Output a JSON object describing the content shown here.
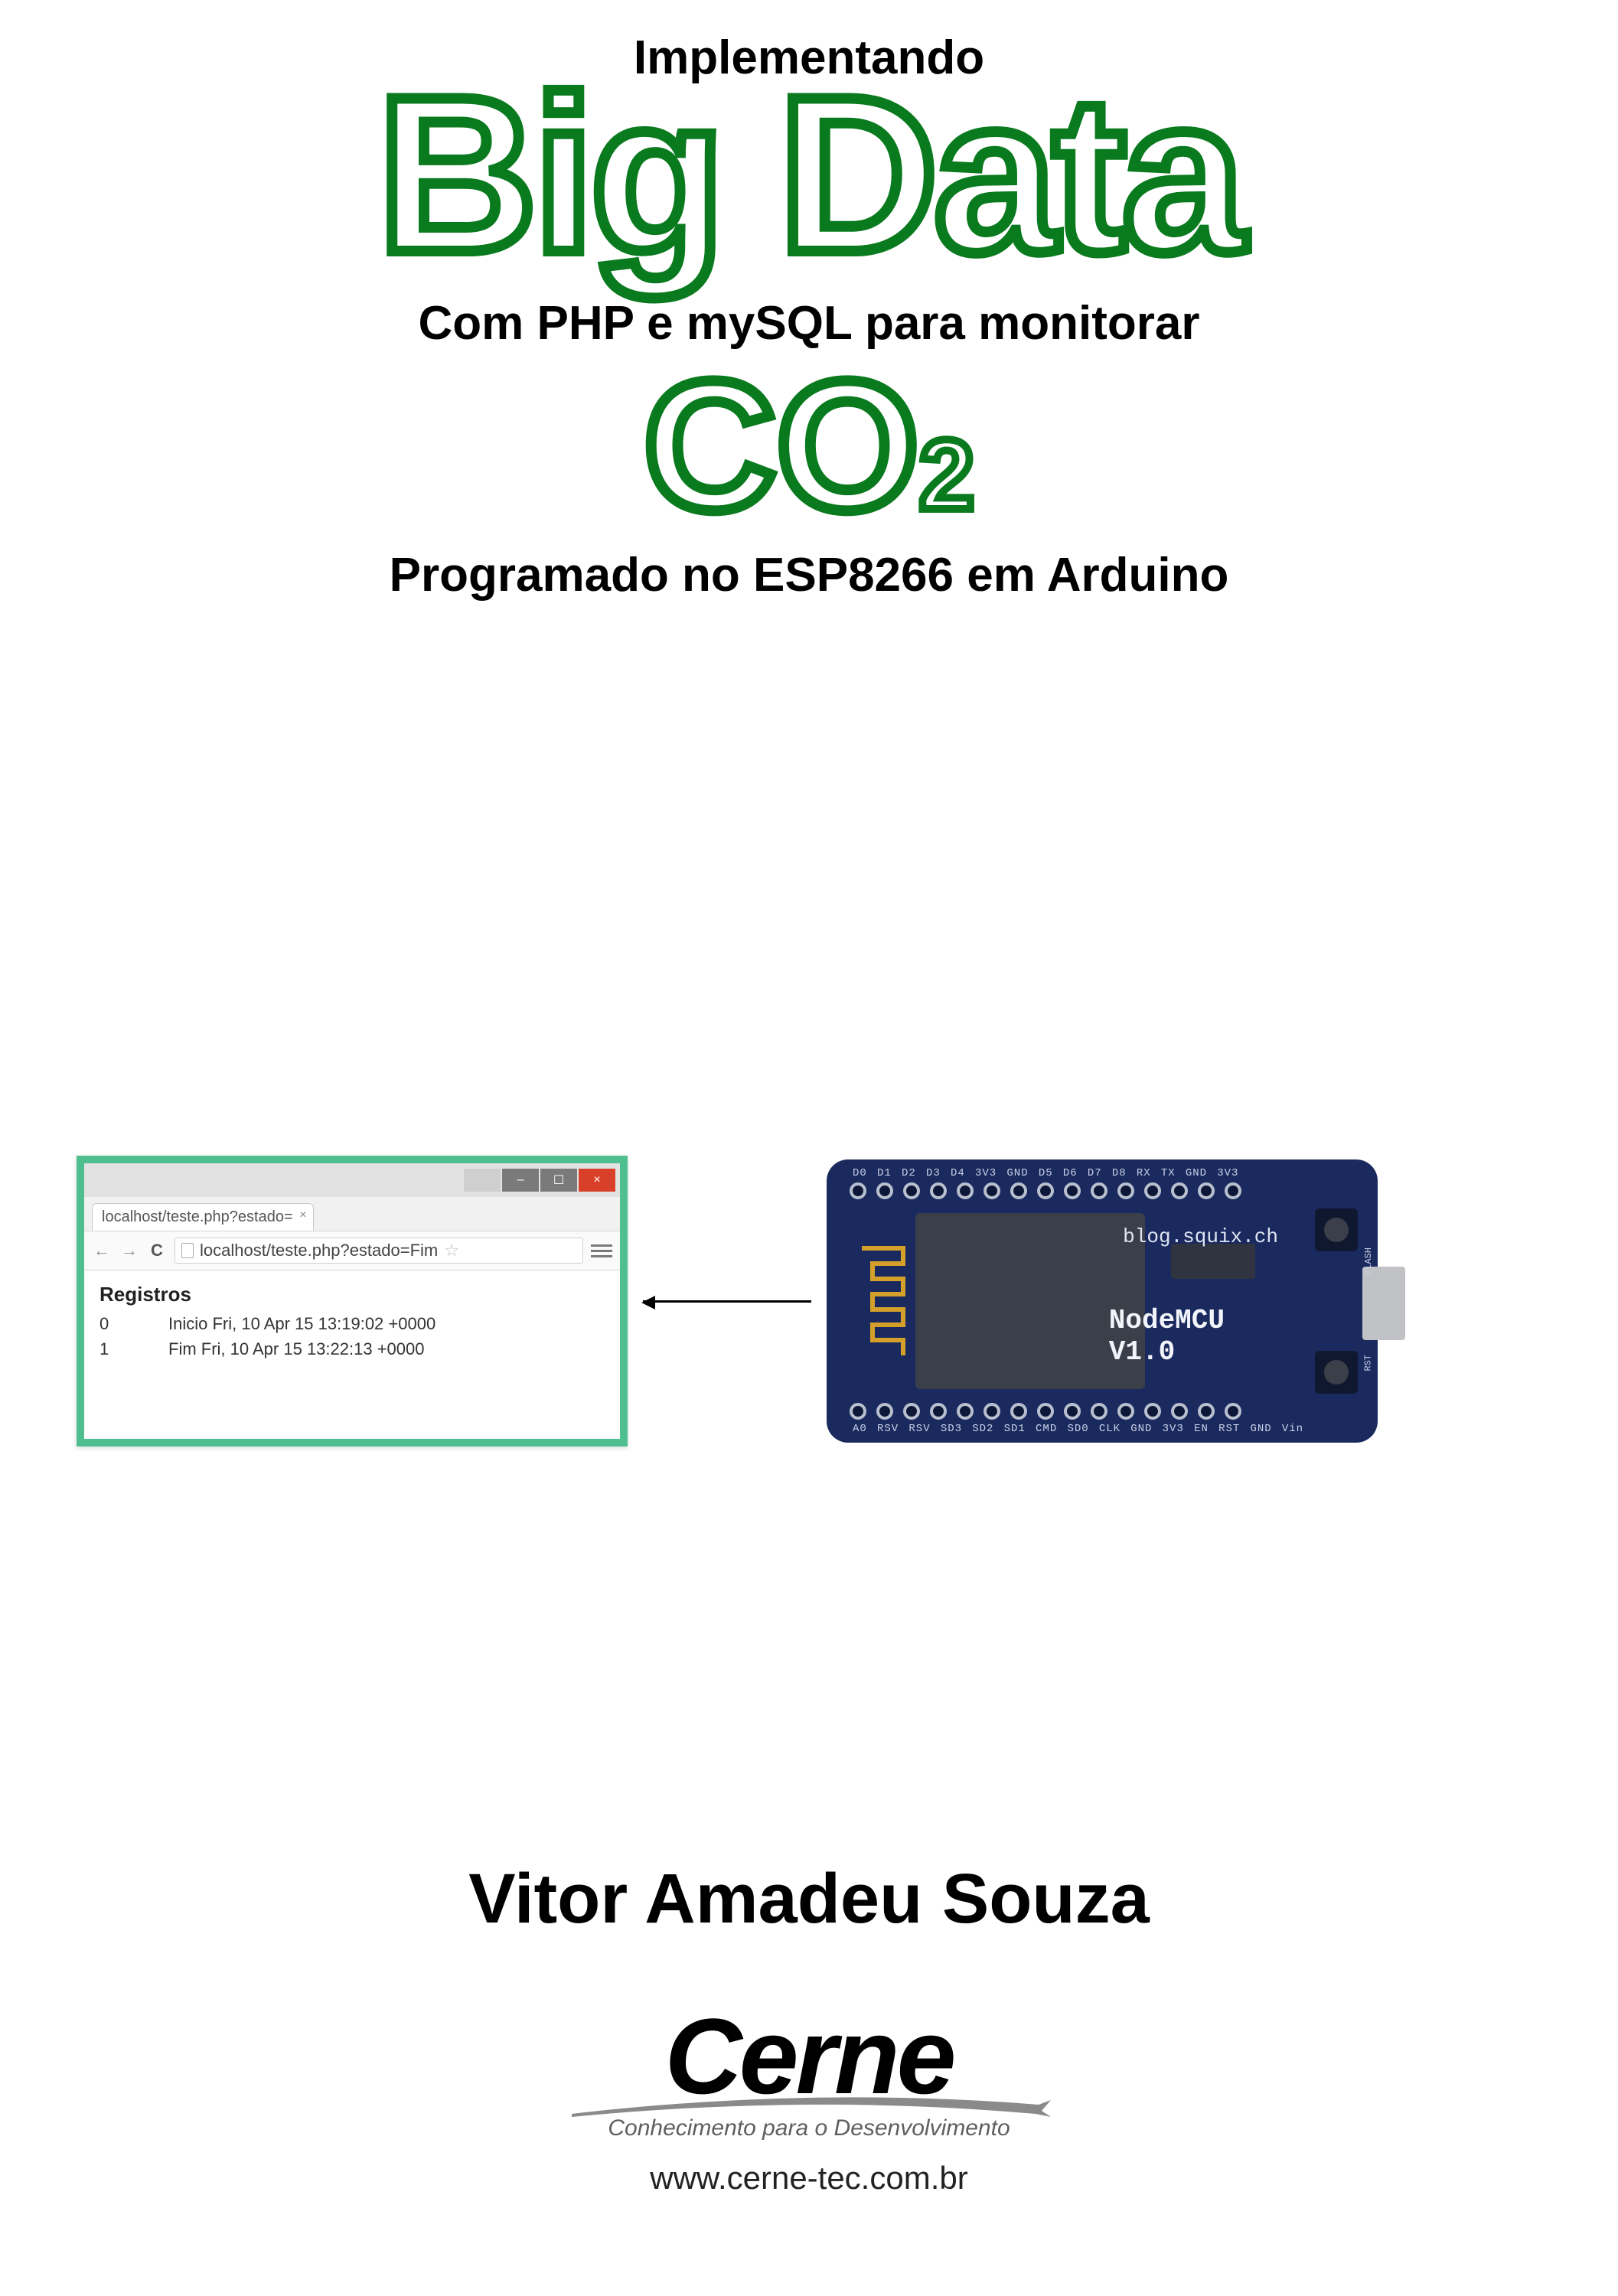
{
  "title": {
    "line1": "Implementando",
    "big": "Big Data",
    "line2": "Com PHP e mySQL para monitorar",
    "co2_main": "CO",
    "co2_sub": "2",
    "line3": "Programado no ESP8266 em Arduino",
    "outline_color": "#0a7a1e",
    "big_fontsize": 290,
    "co2_fontsize": 240,
    "small_fontsize": 62
  },
  "browser": {
    "border_color": "#4fbf8f",
    "window_buttons": {
      "blank": "",
      "min": "–",
      "max": "☐",
      "close": "×",
      "close_bg": "#d9402a",
      "btn_bg": "#7a7a7a"
    },
    "tab_title": "localhost/teste.php?estado=",
    "nav": {
      "back": "←",
      "fwd": "→",
      "reload": "C",
      "star": "☆"
    },
    "address": "localhost/teste.php?estado=Fim",
    "content": {
      "heading": "Registros",
      "rows": [
        {
          "idx": "0",
          "text": "Inicio Fri, 10 Apr 15 13:19:02 +0000"
        },
        {
          "idx": "1",
          "text": "Fim Fri, 10 Apr 15 13:22:13 +0000"
        }
      ]
    }
  },
  "board": {
    "pcb_color": "#1a2a5e",
    "shield_color": "#3a3f4a",
    "antenna_color": "#d4a02a",
    "usb_color": "#c0c2c6",
    "pin_labels_top": [
      "D0",
      "D1",
      "D2",
      "D3",
      "D4",
      "3V3",
      "GND",
      "D5",
      "D6",
      "D7",
      "D8",
      "RX",
      "TX",
      "GND",
      "3V3"
    ],
    "pin_labels_bot": [
      "A0",
      "RSV",
      "RSV",
      "SD3",
      "SD2",
      "SD1",
      "CMD",
      "SD0",
      "CLK",
      "GND",
      "3V3",
      "EN",
      "RST",
      "GND",
      "Vin"
    ],
    "label_blog": "blog.squix.ch",
    "label_name": "NodeMCU",
    "label_ver": "V1.0",
    "btn_top_label": "FLASH",
    "btn_bot_label": "RST"
  },
  "footer": {
    "author": "Vitor Amadeu Souza",
    "logo_text": "Cerne",
    "tagline": "Conhecimento para o Desenvolvimento",
    "url": "www.cerne-tec.com.br",
    "swoosh_color": "#8a8a8a"
  }
}
